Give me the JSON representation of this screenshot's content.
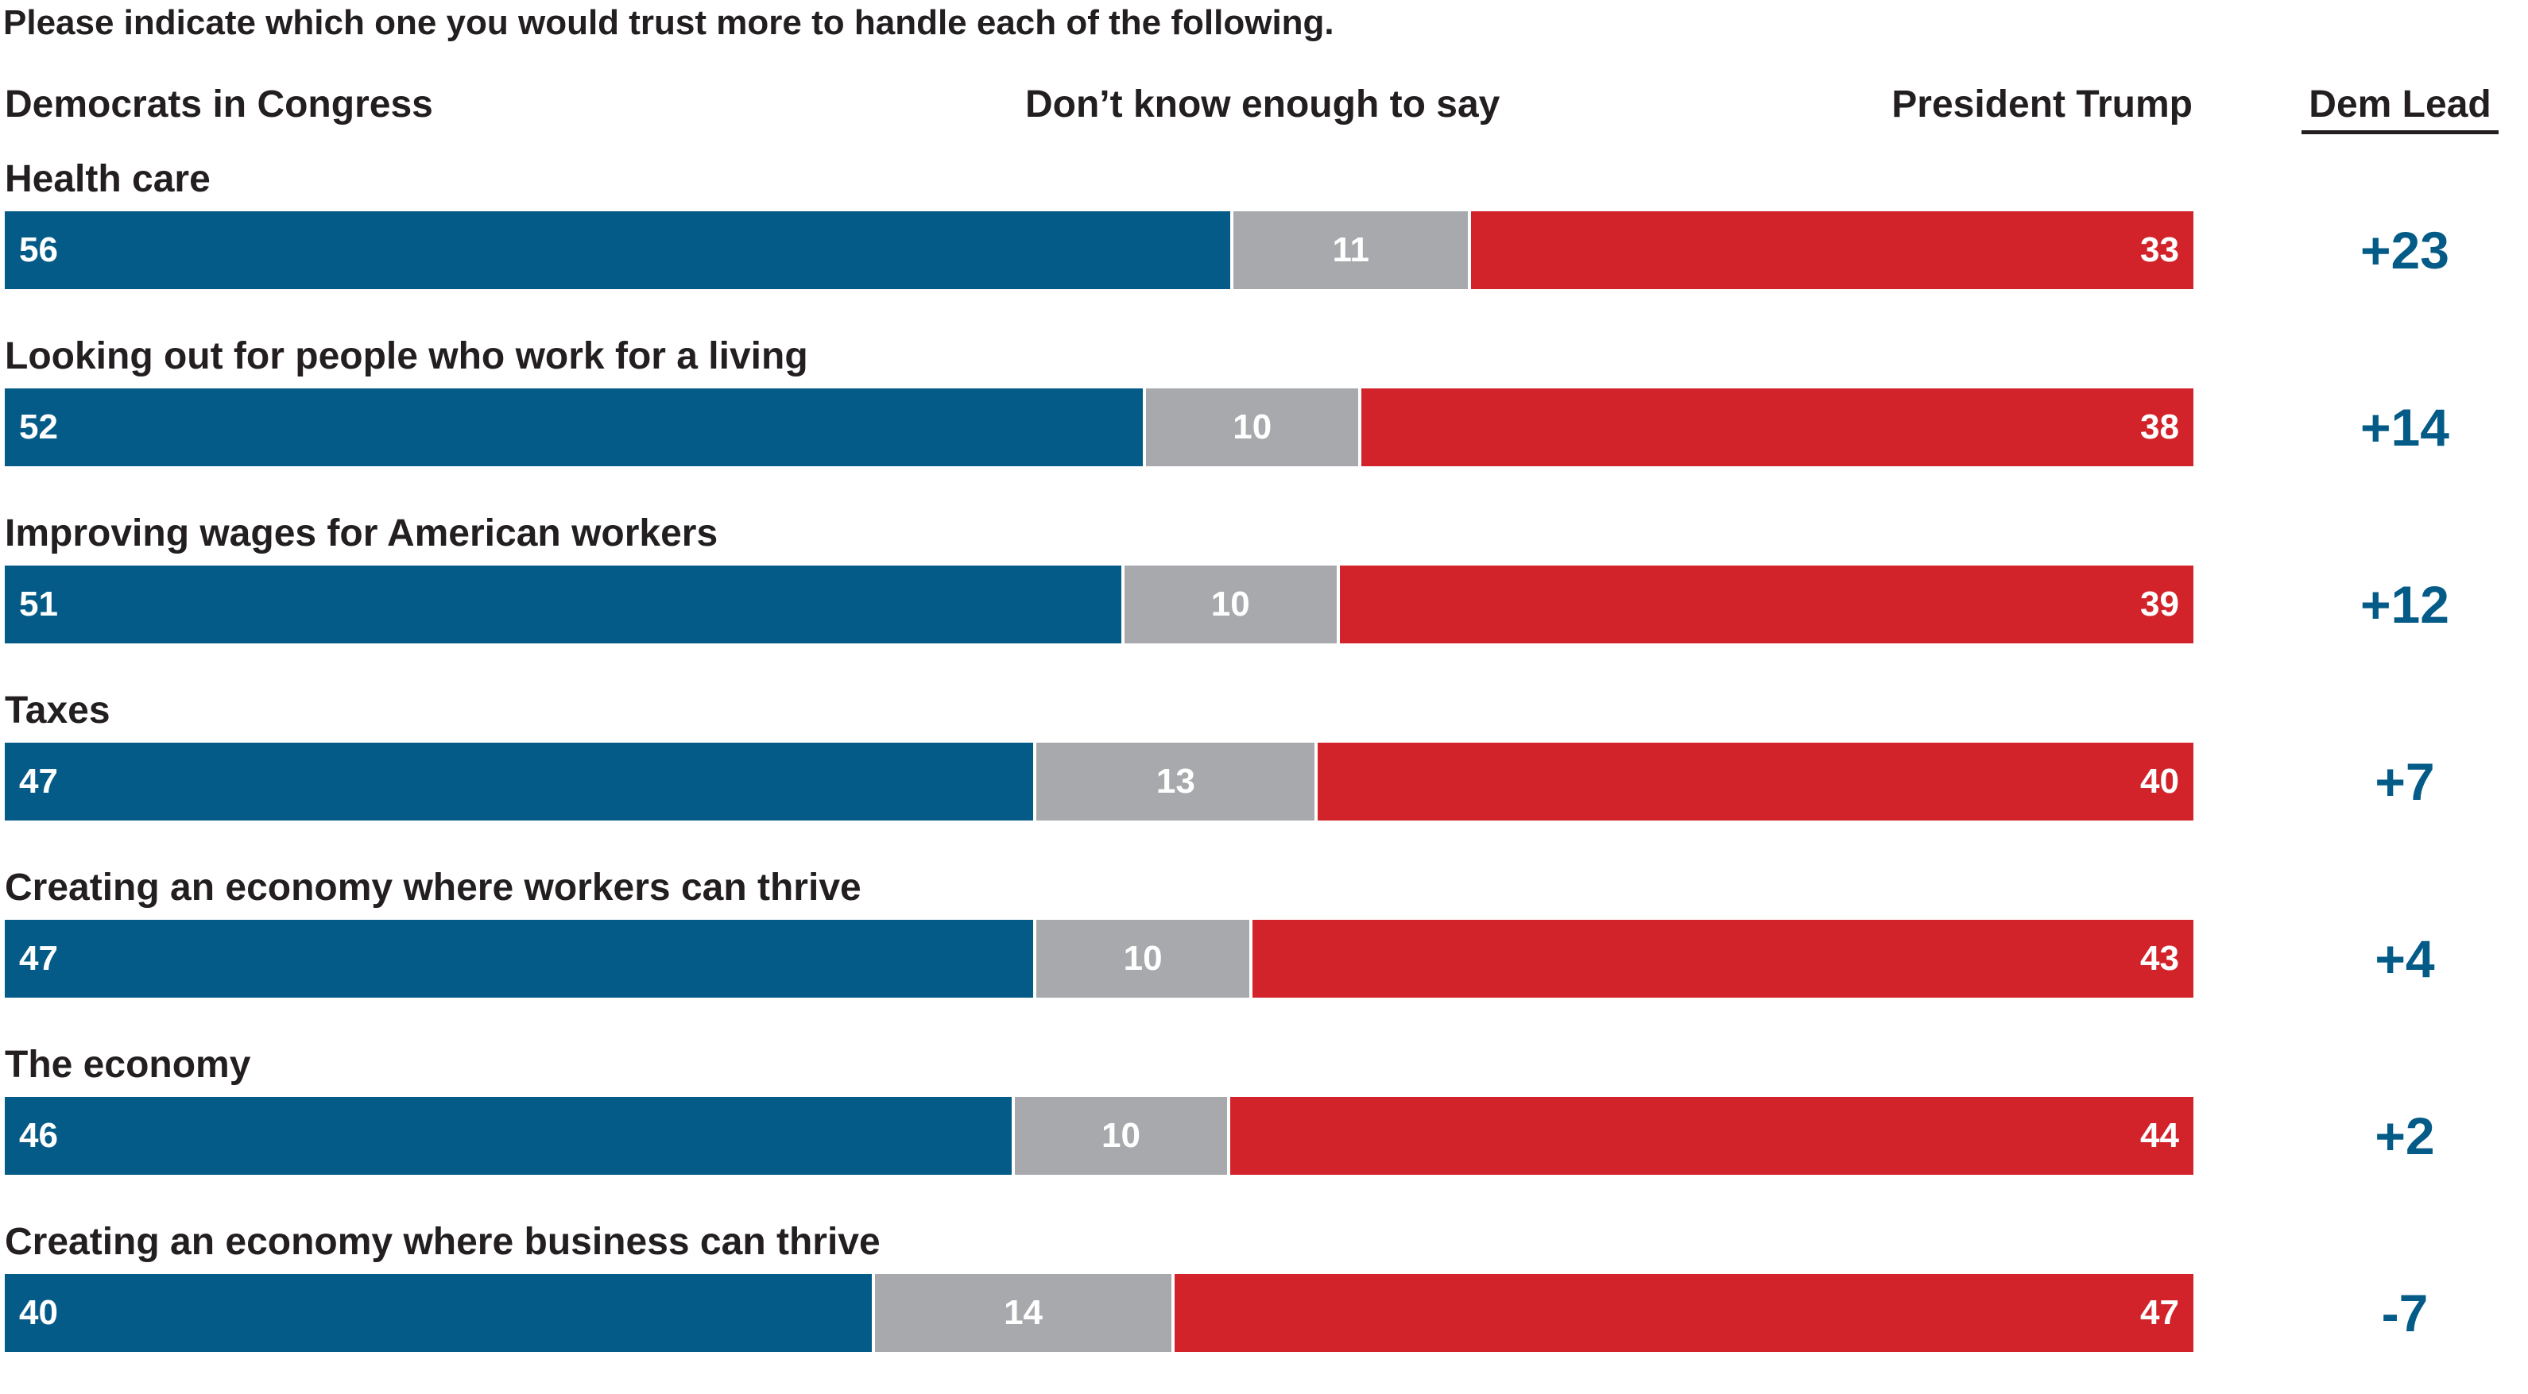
{
  "chart_data": {
    "type": "bar",
    "title": "Please indicate which one you would trust more to handle each of the following.",
    "series_labels": {
      "dem": "Democrats in Congress",
      "dk": "Don’t know enough to say",
      "trump": "President Trump"
    },
    "lead_header": "Dem Lead",
    "colors": {
      "dem": "#045b87",
      "dk": "#a7a9ac",
      "trump": "#d2232a",
      "lead": "#045b87"
    },
    "rows": [
      {
        "label": "Health care",
        "dem": 56,
        "dk": 11,
        "trump": 33,
        "lead": "+23"
      },
      {
        "label": "Looking out for people who work for a living",
        "dem": 52,
        "dk": 10,
        "trump": 38,
        "lead": "+14"
      },
      {
        "label": "Improving wages for American workers",
        "dem": 51,
        "dk": 10,
        "trump": 39,
        "lead": "+12"
      },
      {
        "label": "Taxes",
        "dem": 47,
        "dk": 13,
        "trump": 40,
        "lead": "+7"
      },
      {
        "label": "Creating an economy where workers can thrive",
        "dem": 47,
        "dk": 10,
        "trump": 43,
        "lead": "+4"
      },
      {
        "label": "The economy",
        "dem": 46,
        "dk": 10,
        "trump": 44,
        "lead": "+2"
      },
      {
        "label": "Creating an economy where business can thrive",
        "dem": 40,
        "dk": 14,
        "trump": 47,
        "lead": "-7"
      }
    ]
  }
}
